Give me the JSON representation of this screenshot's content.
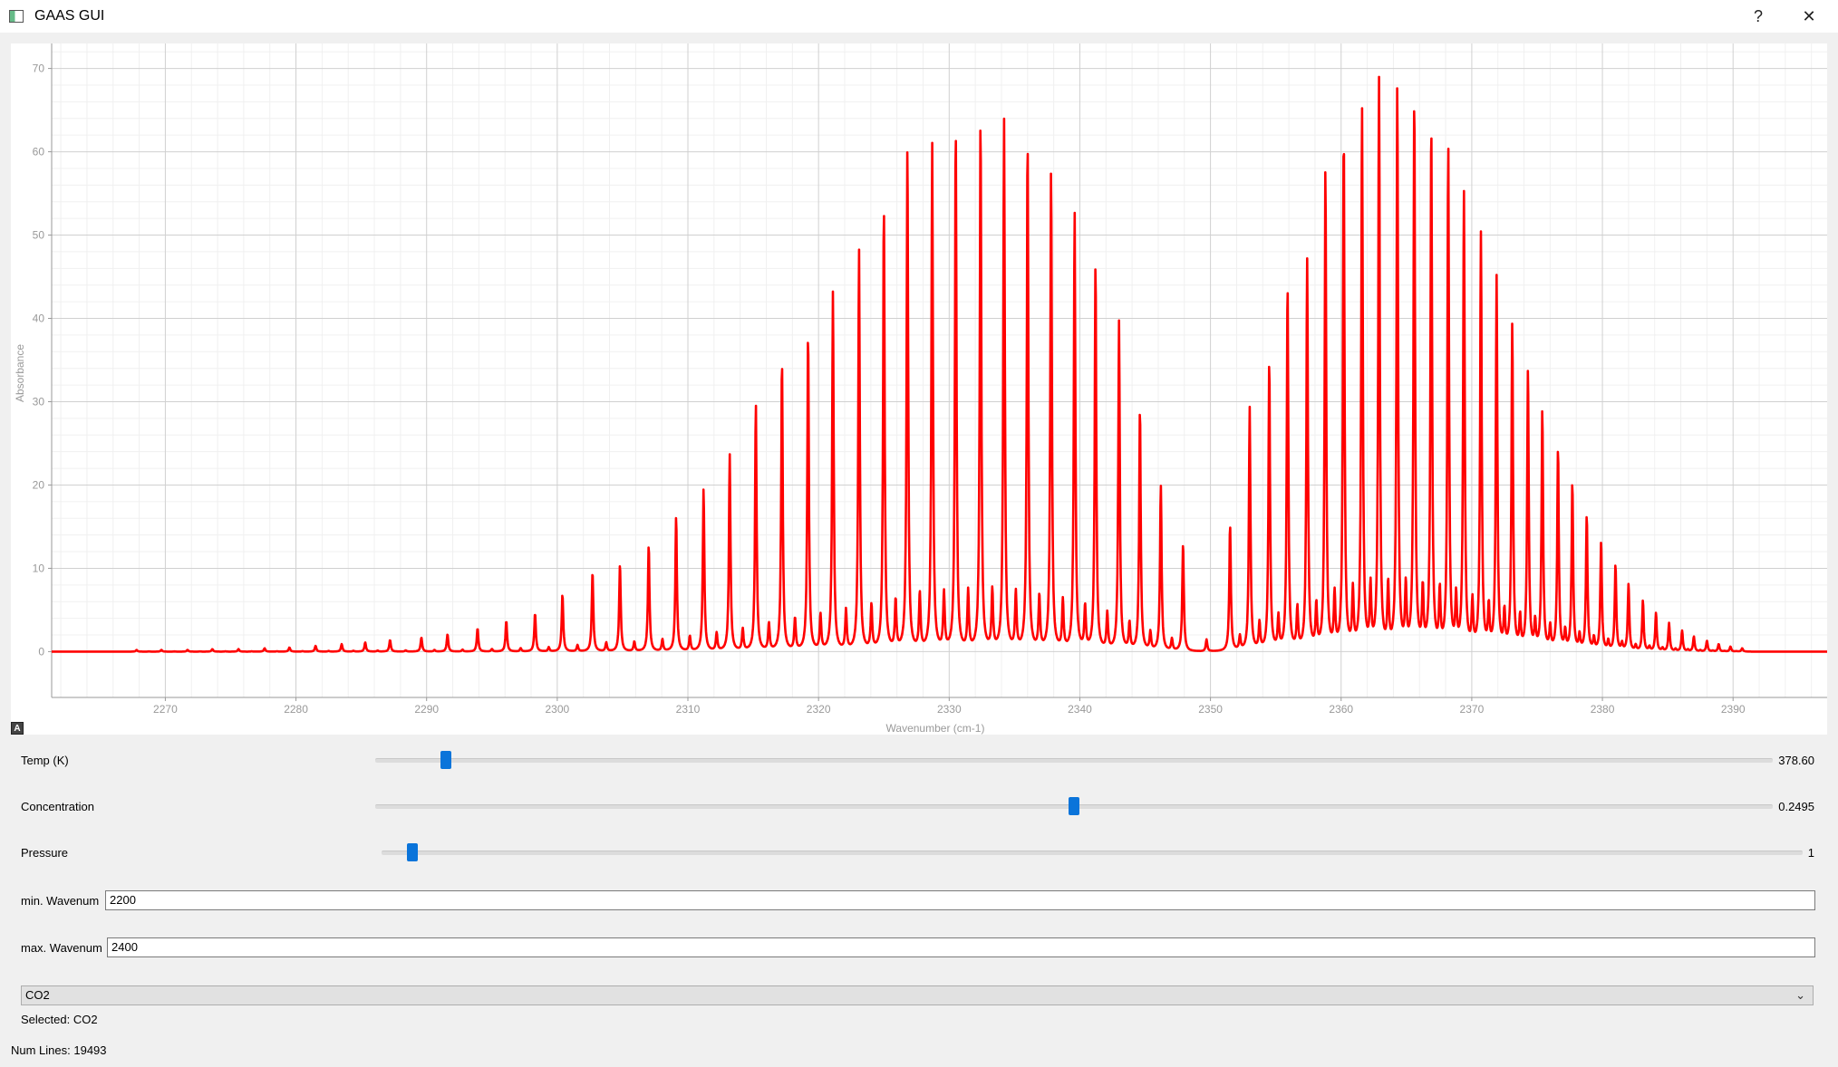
{
  "window": {
    "title": "GAAS GUI",
    "help_label": "?",
    "close_label": "✕"
  },
  "chart_data": {
    "type": "line",
    "title": "",
    "xlabel": "Wavenumber (cm-1)",
    "ylabel": "Absorbance",
    "xlim": [
      2261.3,
      2397.2
    ],
    "ylim": [
      -5.5,
      73
    ],
    "x_ticks": [
      2270,
      2280,
      2290,
      2300,
      2310,
      2320,
      2330,
      2340,
      2350,
      2360,
      2370,
      2380,
      2390
    ],
    "y_ticks": [
      0,
      10,
      20,
      30,
      40,
      50,
      60,
      70
    ],
    "grid": true,
    "series": [
      {
        "color": "#ff0000",
        "peaks": [
          [
            2267.8,
            0.2
          ],
          [
            2269.7,
            0.2
          ],
          [
            2271.7,
            0.2
          ],
          [
            2273.6,
            0.3
          ],
          [
            2275.6,
            0.3
          ],
          [
            2277.6,
            0.4
          ],
          [
            2279.5,
            0.5
          ],
          [
            2281.5,
            0.7
          ],
          [
            2283.5,
            0.9
          ],
          [
            2285.3,
            1.1
          ],
          [
            2287.2,
            1.4
          ],
          [
            2289.6,
            1.7
          ],
          [
            2291.6,
            2.1
          ],
          [
            2293.9,
            2.8
          ],
          [
            2296.1,
            3.7
          ],
          [
            2298.3,
            4.6
          ],
          [
            2300.4,
            6.9
          ],
          [
            2302.7,
            9.6
          ],
          [
            2304.8,
            10.5
          ],
          [
            2307.0,
            12.8
          ],
          [
            2309.1,
            16.2
          ],
          [
            2311.2,
            19.5
          ],
          [
            2313.2,
            23.6
          ],
          [
            2315.2,
            29.7
          ],
          [
            2317.2,
            35.0
          ],
          [
            2319.2,
            38.2
          ],
          [
            2321.1,
            43.2
          ],
          [
            2323.1,
            48.1
          ],
          [
            2325.0,
            53.4
          ],
          [
            2326.8,
            60.7
          ],
          [
            2328.7,
            60.8
          ],
          [
            2330.5,
            62.8
          ],
          [
            2332.4,
            63.9
          ],
          [
            2334.2,
            63.7
          ],
          [
            2336.0,
            61.4
          ],
          [
            2337.8,
            57.8
          ],
          [
            2339.6,
            52.6
          ],
          [
            2341.2,
            46.6
          ],
          [
            2343.0,
            39.6
          ],
          [
            2344.6,
            29.2
          ],
          [
            2346.2,
            19.9
          ],
          [
            2347.9,
            13.0
          ],
          [
            2351.5,
            15.2
          ],
          [
            2353.0,
            29.2
          ],
          [
            2354.5,
            34.8
          ],
          [
            2355.9,
            44.0
          ],
          [
            2357.4,
            46.8
          ],
          [
            2358.8,
            57.8
          ],
          [
            2360.2,
            62.2
          ],
          [
            2361.6,
            65.3
          ],
          [
            2362.9,
            68.4
          ],
          [
            2364.3,
            67.7
          ],
          [
            2365.6,
            66.4
          ],
          [
            2366.9,
            63.3
          ],
          [
            2368.2,
            60.5
          ],
          [
            2369.4,
            55.0
          ],
          [
            2370.7,
            49.9
          ],
          [
            2371.9,
            44.8
          ],
          [
            2373.1,
            39.2
          ],
          [
            2374.3,
            33.8
          ],
          [
            2375.4,
            28.9
          ],
          [
            2376.6,
            24.3
          ],
          [
            2377.7,
            20.2
          ],
          [
            2378.8,
            16.3
          ],
          [
            2379.9,
            13.2
          ],
          [
            2381.0,
            10.4
          ],
          [
            2382.0,
            8.1
          ],
          [
            2383.1,
            6.1
          ],
          [
            2384.1,
            4.6
          ],
          [
            2385.1,
            3.4
          ],
          [
            2386.1,
            2.5
          ],
          [
            2387.0,
            1.8
          ],
          [
            2388.0,
            1.3
          ],
          [
            2388.9,
            0.9
          ],
          [
            2389.8,
            0.6
          ],
          [
            2390.7,
            0.4
          ]
        ]
      }
    ]
  },
  "controls": {
    "temp": {
      "label": "Temp (K)",
      "value": "378.60",
      "position": 0.05
    },
    "concentration": {
      "label": "Concentration",
      "value": "0.2495",
      "position": 0.5
    },
    "pressure": {
      "label": "Pressure",
      "value": "1",
      "position": 0.02
    },
    "min_wavenum": {
      "label": "min. Wavenum",
      "value": "2200"
    },
    "max_wavenum": {
      "label": "max. Wavenum",
      "value": "2400"
    },
    "molecule": {
      "selected": "CO2",
      "selected_text": "Selected: CO2"
    },
    "num_lines": "Num Lines: 19493",
    "auto_range_label": "A"
  },
  "colors": {
    "accent": "#0a74da",
    "line": "#ff0000"
  }
}
